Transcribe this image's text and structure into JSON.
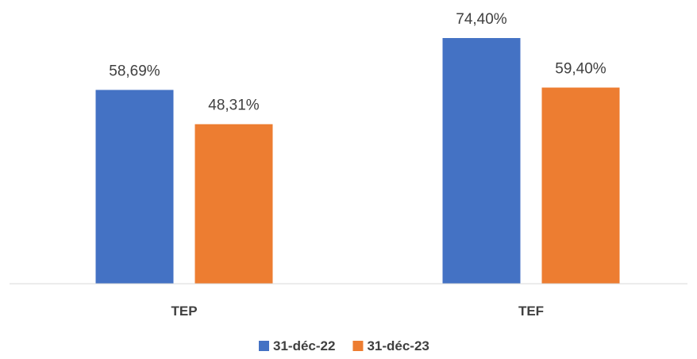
{
  "chart_data": {
    "type": "bar",
    "categories": [
      "TEP",
      "TEF"
    ],
    "series": [
      {
        "name": "31-déc-22",
        "color": "#4472C4",
        "values": [
          58.69,
          74.4
        ],
        "labels": [
          "58,69%",
          "74,40%"
        ]
      },
      {
        "name": "31-déc-23",
        "color": "#ED7D31",
        "values": [
          48.31,
          59.4
        ],
        "labels": [
          "48,31%",
          "59,40%"
        ]
      }
    ],
    "title": "",
    "xlabel": "",
    "ylabel": "",
    "ylim": [
      0,
      80
    ],
    "grid": false,
    "legend_position": "bottom"
  }
}
